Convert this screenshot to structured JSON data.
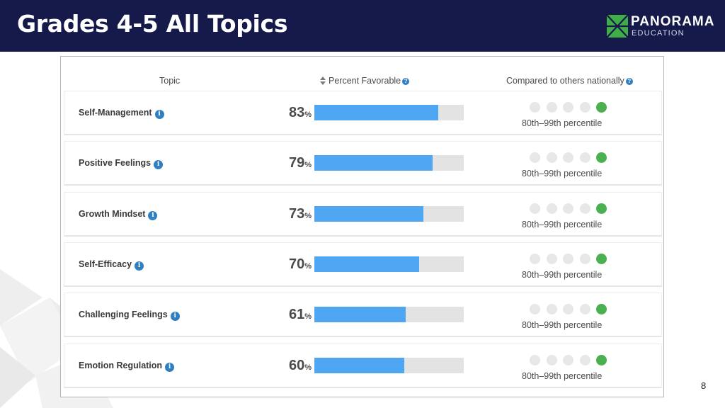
{
  "slide": {
    "title": "Grades 4-5 All Topics",
    "page_number": "8"
  },
  "brand": {
    "name": "PANORAMA",
    "sub": "EDUCATION",
    "mark_color": "#3fae49"
  },
  "table": {
    "headers": {
      "topic": "Topic",
      "percent": "Percent Favorable",
      "compared": "Compared to others nationally"
    },
    "rows": [
      {
        "topic": "Self-Management",
        "percent": 83,
        "percent_label": "83",
        "dots_active": 5,
        "percentile": "80th–99th percentile"
      },
      {
        "topic": "Positive Feelings",
        "percent": 79,
        "percent_label": "79",
        "dots_active": 5,
        "percentile": "80th–99th percentile"
      },
      {
        "topic": "Growth Mindset",
        "percent": 73,
        "percent_label": "73",
        "dots_active": 5,
        "percentile": "80th–99th percentile"
      },
      {
        "topic": "Self-Efficacy",
        "percent": 70,
        "percent_label": "70",
        "dots_active": 5,
        "percentile": "80th–99th percentile"
      },
      {
        "topic": "Challenging Feelings",
        "percent": 61,
        "percent_label": "61",
        "dots_active": 5,
        "percentile": "80th–99th percentile"
      },
      {
        "topic": "Emotion Regulation",
        "percent": 60,
        "percent_label": "60",
        "dots_active": 5,
        "percentile": "80th–99th percentile"
      }
    ],
    "percent_suffix": "%",
    "dots_total": 5
  },
  "colors": {
    "header_bg": "#161a4a",
    "bar_fill": "#4fa6f2",
    "bar_track": "#e3e3e3",
    "dot_active": "#4bb04f",
    "dot_inactive": "#e7e7e7",
    "info": "#2f7fc1"
  },
  "icons": {
    "info": "info-icon",
    "help": "help-icon",
    "sort": "sort-icon"
  }
}
